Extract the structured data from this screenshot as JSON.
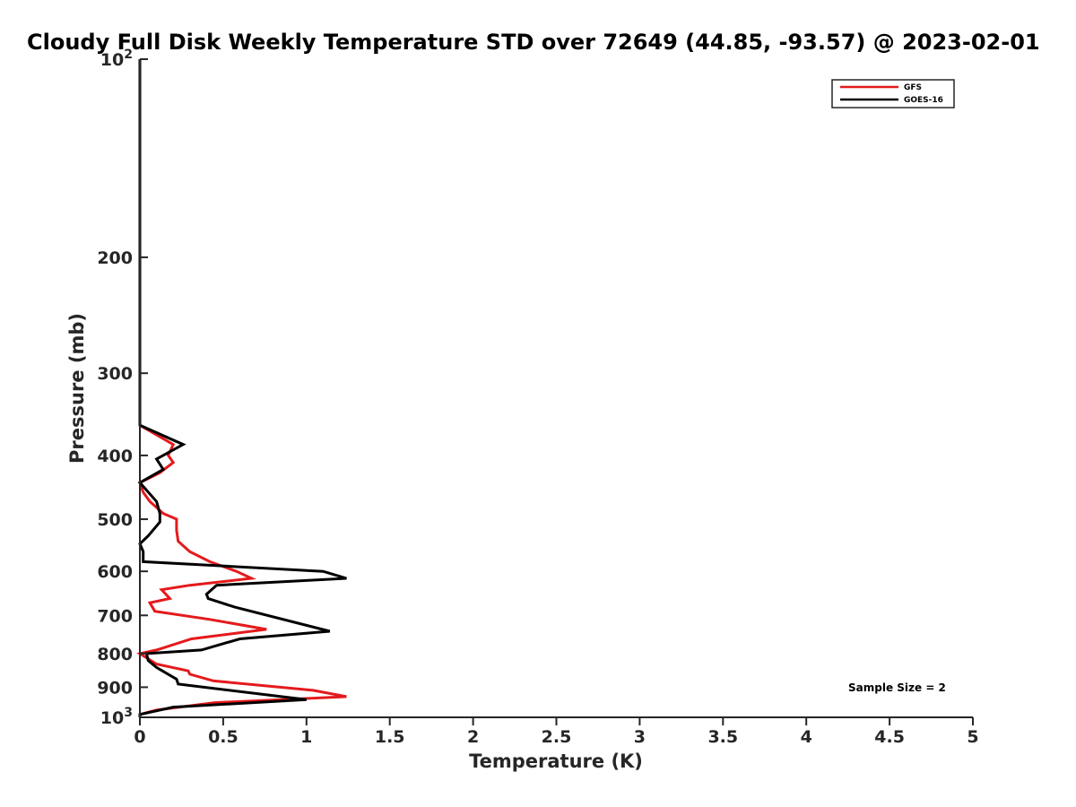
{
  "chart_data": {
    "type": "line",
    "title": "Cloudy Full Disk Weekly Temperature STD over 72649 (44.85, -93.57) @ 2023-02-01",
    "xlabel": "Temperature (K)",
    "ylabel": "Pressure (mb)",
    "xlim": [
      0,
      5
    ],
    "ylim": [
      1000,
      100
    ],
    "yscale": "log",
    "x_ticks": [
      {
        "value": 0,
        "label": "0"
      },
      {
        "value": 0.5,
        "label": "0.5"
      },
      {
        "value": 1,
        "label": "1"
      },
      {
        "value": 1.5,
        "label": "1.5"
      },
      {
        "value": 2,
        "label": "2"
      },
      {
        "value": 2.5,
        "label": "2.5"
      },
      {
        "value": 3,
        "label": "3"
      },
      {
        "value": 3.5,
        "label": "3.5"
      },
      {
        "value": 4,
        "label": "4"
      },
      {
        "value": 4.5,
        "label": "4.5"
      },
      {
        "value": 5,
        "label": "5"
      }
    ],
    "y_ticks": [
      {
        "value": 100,
        "label": "10",
        "sup": "2"
      },
      {
        "value": 200,
        "label": "200"
      },
      {
        "value": 300,
        "label": "300"
      },
      {
        "value": 400,
        "label": "400"
      },
      {
        "value": 500,
        "label": "500"
      },
      {
        "value": 600,
        "label": "600"
      },
      {
        "value": 700,
        "label": "700"
      },
      {
        "value": 800,
        "label": "800"
      },
      {
        "value": 900,
        "label": "900"
      },
      {
        "value": 1000,
        "label": "10",
        "sup": "3"
      }
    ],
    "grid": false,
    "legend_position": "top-right",
    "series": [
      {
        "name": "GFS",
        "color": "#e41a1c",
        "points": [
          [
            0,
            100
          ],
          [
            0,
            360
          ],
          [
            0.2,
            385
          ],
          [
            0.17,
            400
          ],
          [
            0.2,
            410
          ],
          [
            0.12,
            425
          ],
          [
            0,
            440
          ],
          [
            0.02,
            455
          ],
          [
            0.06,
            470
          ],
          [
            0.14,
            490
          ],
          [
            0.22,
            500
          ],
          [
            0.22,
            520
          ],
          [
            0.23,
            540
          ],
          [
            0.3,
            560
          ],
          [
            0.42,
            580
          ],
          [
            0.58,
            600
          ],
          [
            0.67,
            615
          ],
          [
            0.3,
            630
          ],
          [
            0.13,
            640
          ],
          [
            0.18,
            660
          ],
          [
            0.06,
            670
          ],
          [
            0.09,
            690
          ],
          [
            0.42,
            710
          ],
          [
            0.76,
            735
          ],
          [
            0.31,
            760
          ],
          [
            0.1,
            790
          ],
          [
            0,
            800
          ],
          [
            0.1,
            830
          ],
          [
            0.29,
            850
          ],
          [
            0.3,
            860
          ],
          [
            0.44,
            880
          ],
          [
            1.04,
            910
          ],
          [
            1.24,
            930
          ],
          [
            0.45,
            950
          ],
          [
            0.1,
            975
          ],
          [
            0,
            990
          ],
          [
            0,
            1000
          ]
        ]
      },
      {
        "name": "GOES-16",
        "color": "#000000",
        "points": [
          [
            0,
            100
          ],
          [
            0,
            360
          ],
          [
            0.26,
            385
          ],
          [
            0.1,
            405
          ],
          [
            0.14,
            420
          ],
          [
            0,
            440
          ],
          [
            0.1,
            470
          ],
          [
            0.12,
            490
          ],
          [
            0.12,
            505
          ],
          [
            0.05,
            530
          ],
          [
            0,
            545
          ],
          [
            0.02,
            560
          ],
          [
            0.02,
            580
          ],
          [
            1.1,
            600
          ],
          [
            1.24,
            615
          ],
          [
            0.46,
            630
          ],
          [
            0.4,
            650
          ],
          [
            0.41,
            660
          ],
          [
            0.57,
            680
          ],
          [
            1.14,
            740
          ],
          [
            0.6,
            760
          ],
          [
            0.37,
            790
          ],
          [
            0.04,
            800
          ],
          [
            0.05,
            820
          ],
          [
            0.1,
            840
          ],
          [
            0.22,
            875
          ],
          [
            0.23,
            890
          ],
          [
            1.0,
            940
          ],
          [
            0.2,
            965
          ],
          [
            0,
            990
          ],
          [
            0,
            1000
          ]
        ]
      }
    ],
    "annotations": [
      {
        "text": "Sample Size = 2"
      }
    ]
  }
}
